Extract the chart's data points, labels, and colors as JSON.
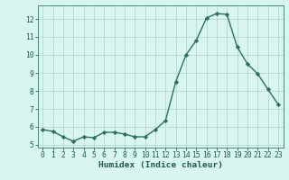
{
  "x": [
    0,
    1,
    2,
    3,
    4,
    5,
    6,
    7,
    8,
    9,
    10,
    11,
    12,
    13,
    14,
    15,
    16,
    17,
    18,
    19,
    20,
    21,
    22,
    23
  ],
  "y": [
    5.85,
    5.75,
    5.45,
    5.2,
    5.45,
    5.4,
    5.7,
    5.7,
    5.6,
    5.45,
    5.45,
    5.85,
    6.35,
    8.5,
    10.0,
    10.8,
    12.05,
    12.3,
    12.25,
    10.45,
    9.5,
    8.95,
    8.1,
    7.25
  ],
  "line_color": "#2e6e62",
  "marker": "D",
  "marker_size": 2.2,
  "linewidth": 1.0,
  "bg_color": "#d8f5ef",
  "grid_color": "#b8d8d2",
  "xlabel": "Humidex (Indice chaleur)",
  "xlim": [
    -0.5,
    23.5
  ],
  "ylim": [
    4.85,
    12.75
  ],
  "yticks": [
    5,
    6,
    7,
    8,
    9,
    10,
    11,
    12
  ],
  "xticks": [
    0,
    1,
    2,
    3,
    4,
    5,
    6,
    7,
    8,
    9,
    10,
    11,
    12,
    13,
    14,
    15,
    16,
    17,
    18,
    19,
    20,
    21,
    22,
    23
  ],
  "tick_fontsize": 5.8,
  "xlabel_fontsize": 6.8,
  "tick_color": "#1e5a50",
  "spine_color": "#4a8a7a"
}
